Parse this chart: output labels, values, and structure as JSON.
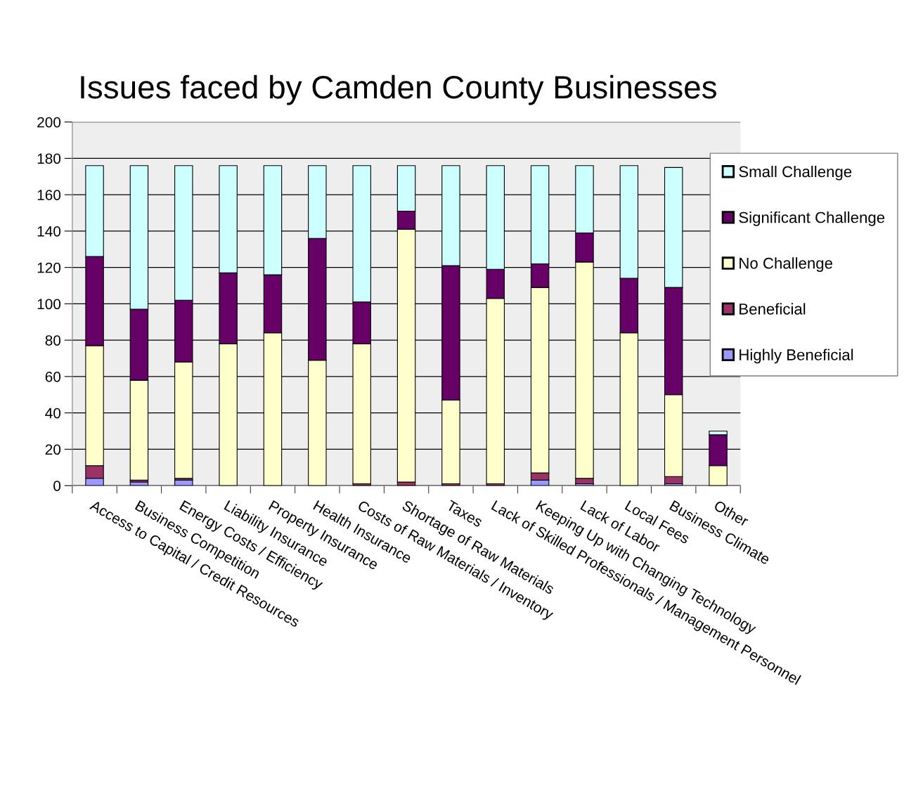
{
  "chart_data": {
    "type": "bar",
    "title": "Issues faced by Camden County Businesses",
    "stacked": true,
    "categories": [
      "Access to Capital / Credit Resources",
      "Business Competition",
      "Energy Costs / Efficiency",
      "Liability Insurance",
      "Property Insurance",
      "Health Insurance",
      "Costs of Raw Materials / Inventory",
      "Shortage of Raw Materials",
      "Taxes",
      "Lack of Skilled Professionals / Management Personnel",
      "Keeping Up with Changing Technology",
      "Lack of Labor",
      "Local Fees",
      "Business Climate",
      "Other"
    ],
    "series": [
      {
        "name": "Highly Beneficial",
        "color": "#9999ff",
        "values": [
          4,
          2,
          3,
          0,
          0,
          0,
          0,
          0,
          0,
          0,
          3,
          1,
          0,
          1,
          0
        ]
      },
      {
        "name": "Beneficial",
        "color": "#993366",
        "values": [
          7,
          1,
          1,
          0,
          0,
          0,
          1,
          2,
          1,
          1,
          4,
          3,
          0,
          4,
          0
        ]
      },
      {
        "name": "No Challenge",
        "color": "#ffffcc",
        "values": [
          66,
          55,
          64,
          78,
          84,
          69,
          77,
          139,
          46,
          102,
          102,
          119,
          84,
          45,
          11
        ]
      },
      {
        "name": "Significant Challenge",
        "color": "#660066",
        "values": [
          49,
          39,
          34,
          39,
          32,
          67,
          23,
          10,
          74,
          16,
          13,
          16,
          30,
          59,
          17
        ]
      },
      {
        "name": "Small Challenge",
        "color": "#ccffff",
        "values": [
          50,
          79,
          74,
          59,
          60,
          40,
          75,
          25,
          55,
          57,
          54,
          37,
          62,
          66,
          2
        ]
      }
    ],
    "ylim": [
      0,
      200
    ],
    "yticks": [
      0,
      20,
      40,
      60,
      80,
      100,
      120,
      140,
      160,
      180,
      200
    ],
    "grid": "y",
    "legend": "right"
  }
}
